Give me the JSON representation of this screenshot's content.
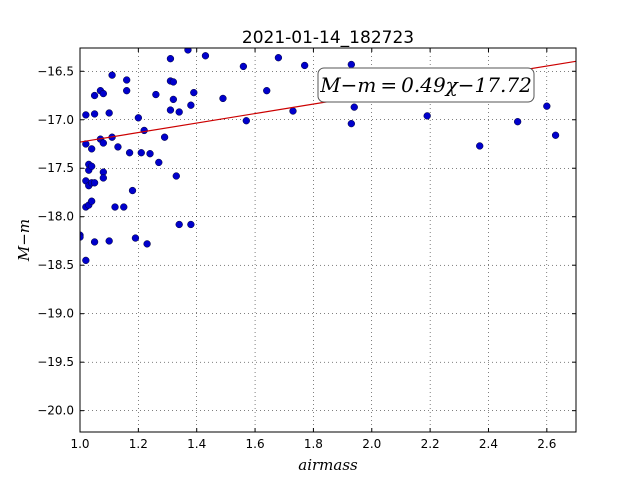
{
  "chart_data": {
    "type": "scatter",
    "title": "2021-01-14_182723",
    "xlabel": "airmass",
    "ylabel": "M−m",
    "xlim": [
      1.0,
      2.7
    ],
    "ylim": [
      -20.22,
      -16.26
    ],
    "x_ticks": [
      1.0,
      1.2,
      1.4,
      1.6,
      1.8,
      2.0,
      2.2,
      2.4,
      2.6
    ],
    "x_tick_labels": [
      "1.0",
      "1.2",
      "1.4",
      "1.6",
      "1.8",
      "2.0",
      "2.2",
      "2.4",
      "2.6"
    ],
    "y_ticks": [
      -16.5,
      -17.0,
      -17.5,
      -18.0,
      -18.5,
      -19.0,
      -19.5,
      -20.0
    ],
    "y_tick_labels": [
      "−16.5",
      "−17.0",
      "−17.5",
      "−18.0",
      "−18.5",
      "−19.0",
      "−19.5",
      "−20.0"
    ],
    "grid": true,
    "point_color": "#0000cc",
    "fit_line": {
      "slope": 0.49,
      "intercept": -17.72,
      "color": "#cc0000"
    },
    "annotation": "M−m = 0.49χ−17.72",
    "points": [
      [
        1.0,
        -18.19
      ],
      [
        1.0,
        -18.21
      ],
      [
        1.02,
        -17.25
      ],
      [
        1.02,
        -16.95
      ],
      [
        1.02,
        -17.9
      ],
      [
        1.02,
        -17.63
      ],
      [
        1.02,
        -18.45
      ],
      [
        1.03,
        -17.46
      ],
      [
        1.03,
        -17.52
      ],
      [
        1.03,
        -17.68
      ],
      [
        1.03,
        -17.88
      ],
      [
        1.04,
        -17.3
      ],
      [
        1.04,
        -17.48
      ],
      [
        1.04,
        -17.84
      ],
      [
        1.04,
        -17.65
      ],
      [
        1.05,
        -16.94
      ],
      [
        1.05,
        -16.75
      ],
      [
        1.05,
        -17.65
      ],
      [
        1.05,
        -18.26
      ],
      [
        1.07,
        -16.7
      ],
      [
        1.07,
        -17.2
      ],
      [
        1.08,
        -16.73
      ],
      [
        1.08,
        -17.24
      ],
      [
        1.08,
        -17.54
      ],
      [
        1.08,
        -17.6
      ],
      [
        1.1,
        -16.93
      ],
      [
        1.1,
        -18.25
      ],
      [
        1.11,
        -16.54
      ],
      [
        1.11,
        -17.18
      ],
      [
        1.12,
        -17.9
      ],
      [
        1.13,
        -17.28
      ],
      [
        1.15,
        -17.9
      ],
      [
        1.16,
        -16.59
      ],
      [
        1.16,
        -16.7
      ],
      [
        1.17,
        -17.34
      ],
      [
        1.18,
        -17.73
      ],
      [
        1.19,
        -18.22
      ],
      [
        1.2,
        -16.98
      ],
      [
        1.21,
        -17.34
      ],
      [
        1.22,
        -17.11
      ],
      [
        1.23,
        -18.28
      ],
      [
        1.24,
        -17.35
      ],
      [
        1.26,
        -16.74
      ],
      [
        1.27,
        -17.44
      ],
      [
        1.29,
        -17.18
      ],
      [
        1.31,
        -16.6
      ],
      [
        1.31,
        -16.37
      ],
      [
        1.31,
        -16.9
      ],
      [
        1.32,
        -16.61
      ],
      [
        1.32,
        -16.79
      ],
      [
        1.33,
        -17.58
      ],
      [
        1.34,
        -16.92
      ],
      [
        1.34,
        -18.08
      ],
      [
        1.37,
        -16.28
      ],
      [
        1.38,
        -18.08
      ],
      [
        1.38,
        -16.85
      ],
      [
        1.39,
        -16.72
      ],
      [
        1.43,
        -16.34
      ],
      [
        1.49,
        -16.78
      ],
      [
        1.56,
        -16.45
      ],
      [
        1.57,
        -17.01
      ],
      [
        1.64,
        -16.7
      ],
      [
        1.68,
        -16.36
      ],
      [
        1.73,
        -16.91
      ],
      [
        1.77,
        -16.44
      ],
      [
        1.93,
        -16.43
      ],
      [
        1.93,
        -17.04
      ],
      [
        1.94,
        -16.87
      ],
      [
        2.19,
        -16.96
      ],
      [
        2.37,
        -17.27
      ],
      [
        2.5,
        -17.02
      ],
      [
        2.6,
        -16.86
      ],
      [
        2.63,
        -17.16
      ]
    ]
  }
}
